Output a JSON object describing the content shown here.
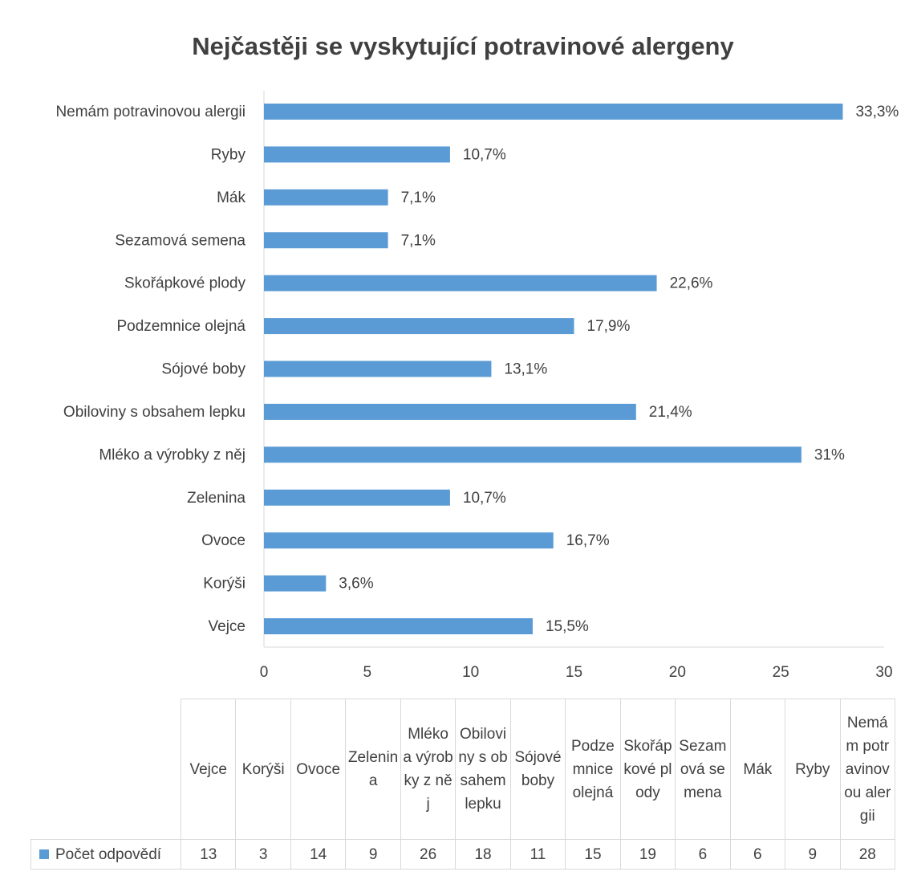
{
  "chart_data": {
    "type": "barh",
    "title": "Nejčastěji se vyskytující potravinové alergeny",
    "categories": [
      "Vejce",
      "Korýši",
      "Ovoce",
      "Zelenina",
      "Mléko a výrobky z něj",
      "Obiloviny s obsahem lepku",
      "Sójové boby",
      "Podzemnice olejná",
      "Skořápkové plody",
      "Sezamová semena",
      "Mák",
      "Ryby",
      "Nemám potravinovou alergii"
    ],
    "series": [
      {
        "name": "Počet odpovědí",
        "color": "#5b9bd5",
        "values": [
          13,
          3,
          14,
          9,
          26,
          18,
          11,
          15,
          19,
          6,
          6,
          9,
          28
        ],
        "value_labels": [
          "15,5%",
          "3,6%",
          "16,7%",
          "10,7%",
          "31%",
          "21,4%",
          "13,1%",
          "17,9%",
          "22,6%",
          "7,1%",
          "7,1%",
          "10,7%",
          "33,3%"
        ]
      }
    ],
    "xlim": [
      0,
      30
    ],
    "xticks": [
      0,
      5,
      10,
      15,
      20,
      25,
      30
    ],
    "grid": false,
    "data_table": true
  }
}
